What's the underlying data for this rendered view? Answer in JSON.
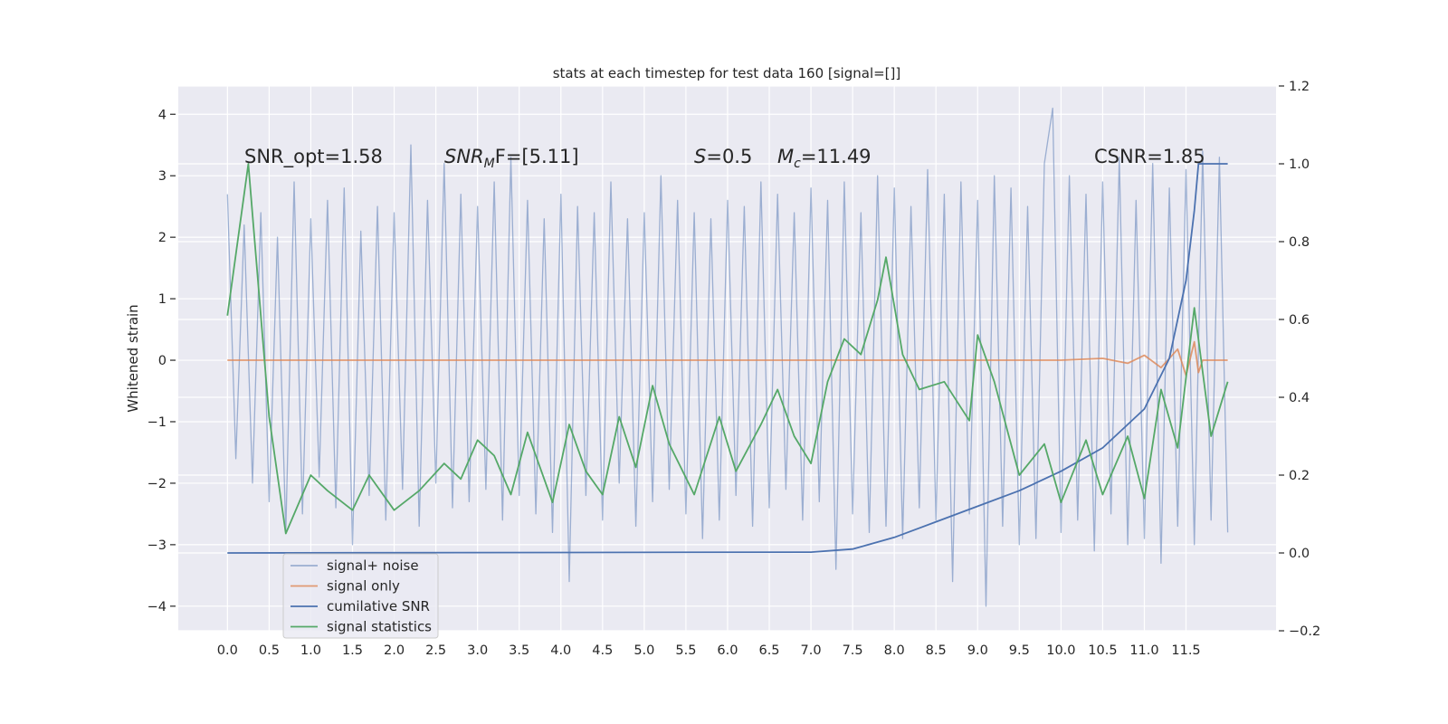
{
  "chart_data": {
    "type": "line",
    "title": "stats at each timestep for test data 160 [signal=[]]",
    "y_label": "Whitened strain",
    "grid": true,
    "xlim": [
      -0.59,
      12.58
    ],
    "ylim": [
      -4.4,
      4.46
    ],
    "y2lim": [
      -0.2,
      1.2
    ],
    "xticks": [
      {
        "value": 0,
        "label": "0.0"
      },
      0.5,
      {
        "value": 1,
        "label": "1.0"
      },
      1.5,
      {
        "value": 2,
        "label": "2.0"
      },
      2.5,
      {
        "value": 3,
        "label": "3.0"
      },
      3.5,
      {
        "value": 4,
        "label": "4.0"
      },
      4.5,
      {
        "value": 5,
        "label": "5.0"
      },
      5.5,
      {
        "value": 6,
        "label": "6.0"
      },
      6.5,
      {
        "value": 7,
        "label": "7.0"
      },
      7.5,
      {
        "value": 8,
        "label": "8.0"
      },
      8.5,
      {
        "value": 9,
        "label": "9.0"
      },
      9.5,
      {
        "value": 10,
        "label": "10.0"
      },
      10.5,
      {
        "value": 11,
        "label": "11.0"
      },
      11.5
    ],
    "yticks": [
      {
        "value": -4,
        "label": "−4"
      },
      {
        "value": -3,
        "label": "−3"
      },
      {
        "value": -2,
        "label": "−2"
      },
      {
        "value": -1,
        "label": "−1"
      },
      0,
      1,
      2,
      3,
      4
    ],
    "y2ticks": [
      {
        "value": -0.2,
        "label": "−0.2"
      },
      {
        "value": 0,
        "label": "0.0"
      },
      0.2,
      0.4,
      0.6,
      0.8,
      {
        "value": 1,
        "label": "1.0"
      },
      1.2
    ],
    "annotations": [
      {
        "main": "SNR_opt=1.58"
      },
      {
        "main": "SNR",
        "sub": "M",
        "rest": "F=[5.11]"
      },
      {
        "main": "S",
        "rest": "=0.5"
      },
      {
        "main": "M",
        "sub": "c",
        "rest": "=11.49"
      },
      {
        "main": "CSNR=1.85"
      }
    ],
    "legend": "lower left",
    "series": [
      {
        "name": "signal+ noise",
        "color": "#4c72b0",
        "alpha": 0.5,
        "x": [
          0,
          0.1,
          0.2,
          0.3,
          0.4,
          0.5,
          0.6,
          0.7,
          0.8,
          0.9,
          1,
          1.1,
          1.2,
          1.3,
          1.4,
          1.5,
          1.6,
          1.7,
          1.8,
          1.9,
          2,
          2.1,
          2.2,
          2.3,
          2.4,
          2.5,
          2.6,
          2.7,
          2.8,
          2.9,
          3,
          3.1,
          3.2,
          3.3,
          3.4,
          3.5,
          3.6,
          3.7,
          3.8,
          3.9,
          4,
          4.1,
          4.2,
          4.3,
          4.4,
          4.5,
          4.6,
          4.7,
          4.8,
          4.9,
          5,
          5.1,
          5.2,
          5.3,
          5.4,
          5.5,
          5.6,
          5.7,
          5.8,
          5.9,
          6,
          6.1,
          6.2,
          6.3,
          6.4,
          6.5,
          6.6,
          6.7,
          6.8,
          6.9,
          7,
          7.1,
          7.2,
          7.3,
          7.4,
          7.5,
          7.6,
          7.7,
          7.8,
          7.9,
          8,
          8.1,
          8.2,
          8.3,
          8.4,
          8.5,
          8.6,
          8.7,
          8.8,
          8.9,
          9,
          9.1,
          9.2,
          9.3,
          9.4,
          9.5,
          9.6,
          9.7,
          9.8,
          9.9,
          10,
          10.1,
          10.2,
          10.3,
          10.4,
          10.5,
          10.6,
          10.7,
          10.8,
          10.9,
          11,
          11.1,
          11.2,
          11.3,
          11.4,
          11.5,
          11.6,
          11.7,
          11.8,
          11.9,
          12
        ],
        "values": [
          2.7,
          -1.6,
          2.2,
          -2.0,
          2.4,
          -2.3,
          2.0,
          -2.8,
          2.9,
          -2.5,
          2.3,
          -1.9,
          2.6,
          -2.4,
          2.8,
          -3.0,
          2.1,
          -2.2,
          2.5,
          -2.6,
          2.4,
          -2.1,
          3.5,
          -2.7,
          2.6,
          -2.0,
          3.2,
          -2.4,
          2.7,
          -2.3,
          2.5,
          -2.1,
          2.9,
          -2.6,
          3.3,
          -2.2,
          2.6,
          -2.5,
          2.3,
          -2.8,
          2.7,
          -3.6,
          2.5,
          -2.2,
          2.4,
          -2.6,
          2.9,
          -2.0,
          2.3,
          -2.7,
          2.4,
          -2.3,
          3.0,
          -2.1,
          2.6,
          -2.5,
          2.4,
          -2.9,
          2.3,
          -2.6,
          2.6,
          -2.2,
          2.5,
          -2.7,
          2.9,
          -2.4,
          2.7,
          -2.1,
          2.4,
          -2.6,
          2.8,
          -2.3,
          2.6,
          -3.4,
          2.9,
          -2.5,
          2.4,
          -2.8,
          3.0,
          -2.7,
          2.8,
          -2.9,
          2.5,
          -2.4,
          3.1,
          -2.6,
          2.7,
          -3.6,
          2.9,
          -2.5,
          2.6,
          -4.0,
          3.0,
          -2.7,
          2.8,
          -3.0,
          2.5,
          -2.9,
          3.2,
          4.1,
          -2.8,
          3.0,
          -2.6,
          2.7,
          -3.1,
          2.9,
          -2.5,
          3.3,
          -3.0,
          2.6,
          -2.9,
          3.2,
          -3.3,
          2.8,
          -2.7,
          3.1,
          -3.0,
          3.4,
          -2.6,
          3.3,
          -2.8
        ]
      },
      {
        "name": "signal only",
        "color": "#dd8452",
        "alpha": 0.8,
        "x": [
          0,
          10,
          10.5,
          10.8,
          11,
          11.2,
          11.4,
          11.5,
          11.6,
          11.65,
          11.7,
          12
        ],
        "values": [
          0,
          0,
          0.03,
          -0.05,
          0.08,
          -0.12,
          0.18,
          -0.25,
          0.3,
          -0.2,
          0,
          0
        ]
      },
      {
        "name": "cumilative SNR",
        "color": "#4c72b0",
        "alpha": 1,
        "axis": "y2",
        "x": [
          0,
          7,
          7.5,
          8,
          8.5,
          9,
          9.5,
          10,
          10.5,
          11,
          11.3,
          11.5,
          11.6,
          11.65,
          12
        ],
        "values": [
          0,
          0.002,
          0.01,
          0.04,
          0.08,
          0.12,
          0.16,
          0.21,
          0.27,
          0.37,
          0.5,
          0.7,
          0.88,
          1,
          1
        ]
      },
      {
        "name": "signal statistics",
        "color": "#55a868",
        "alpha": 1,
        "axis": "y2",
        "x": [
          0,
          0.25,
          0.5,
          0.7,
          1,
          1.2,
          1.5,
          1.7,
          2,
          2.3,
          2.6,
          2.8,
          3,
          3.2,
          3.4,
          3.6,
          3.9,
          4.1,
          4.3,
          4.5,
          4.7,
          4.9,
          5.1,
          5.3,
          5.6,
          5.9,
          6.1,
          6.4,
          6.6,
          6.8,
          7,
          7.2,
          7.4,
          7.6,
          7.8,
          7.9,
          8.1,
          8.3,
          8.6,
          8.9,
          9,
          9.2,
          9.5,
          9.8,
          10,
          10.3,
          10.5,
          10.8,
          11,
          11.2,
          11.4,
          11.6,
          11.8,
          12
        ],
        "values": [
          0.61,
          1,
          0.35,
          0.05,
          0.2,
          0.16,
          0.11,
          0.2,
          0.11,
          0.16,
          0.23,
          0.19,
          0.29,
          0.25,
          0.15,
          0.31,
          0.13,
          0.33,
          0.21,
          0.15,
          0.35,
          0.22,
          0.43,
          0.28,
          0.15,
          0.35,
          0.21,
          0.33,
          0.42,
          0.3,
          0.23,
          0.44,
          0.55,
          0.51,
          0.65,
          0.76,
          0.51,
          0.42,
          0.44,
          0.34,
          0.56,
          0.44,
          0.2,
          0.28,
          0.13,
          0.29,
          0.15,
          0.3,
          0.14,
          0.42,
          0.27,
          0.63,
          0.3,
          0.44
        ]
      }
    ]
  }
}
